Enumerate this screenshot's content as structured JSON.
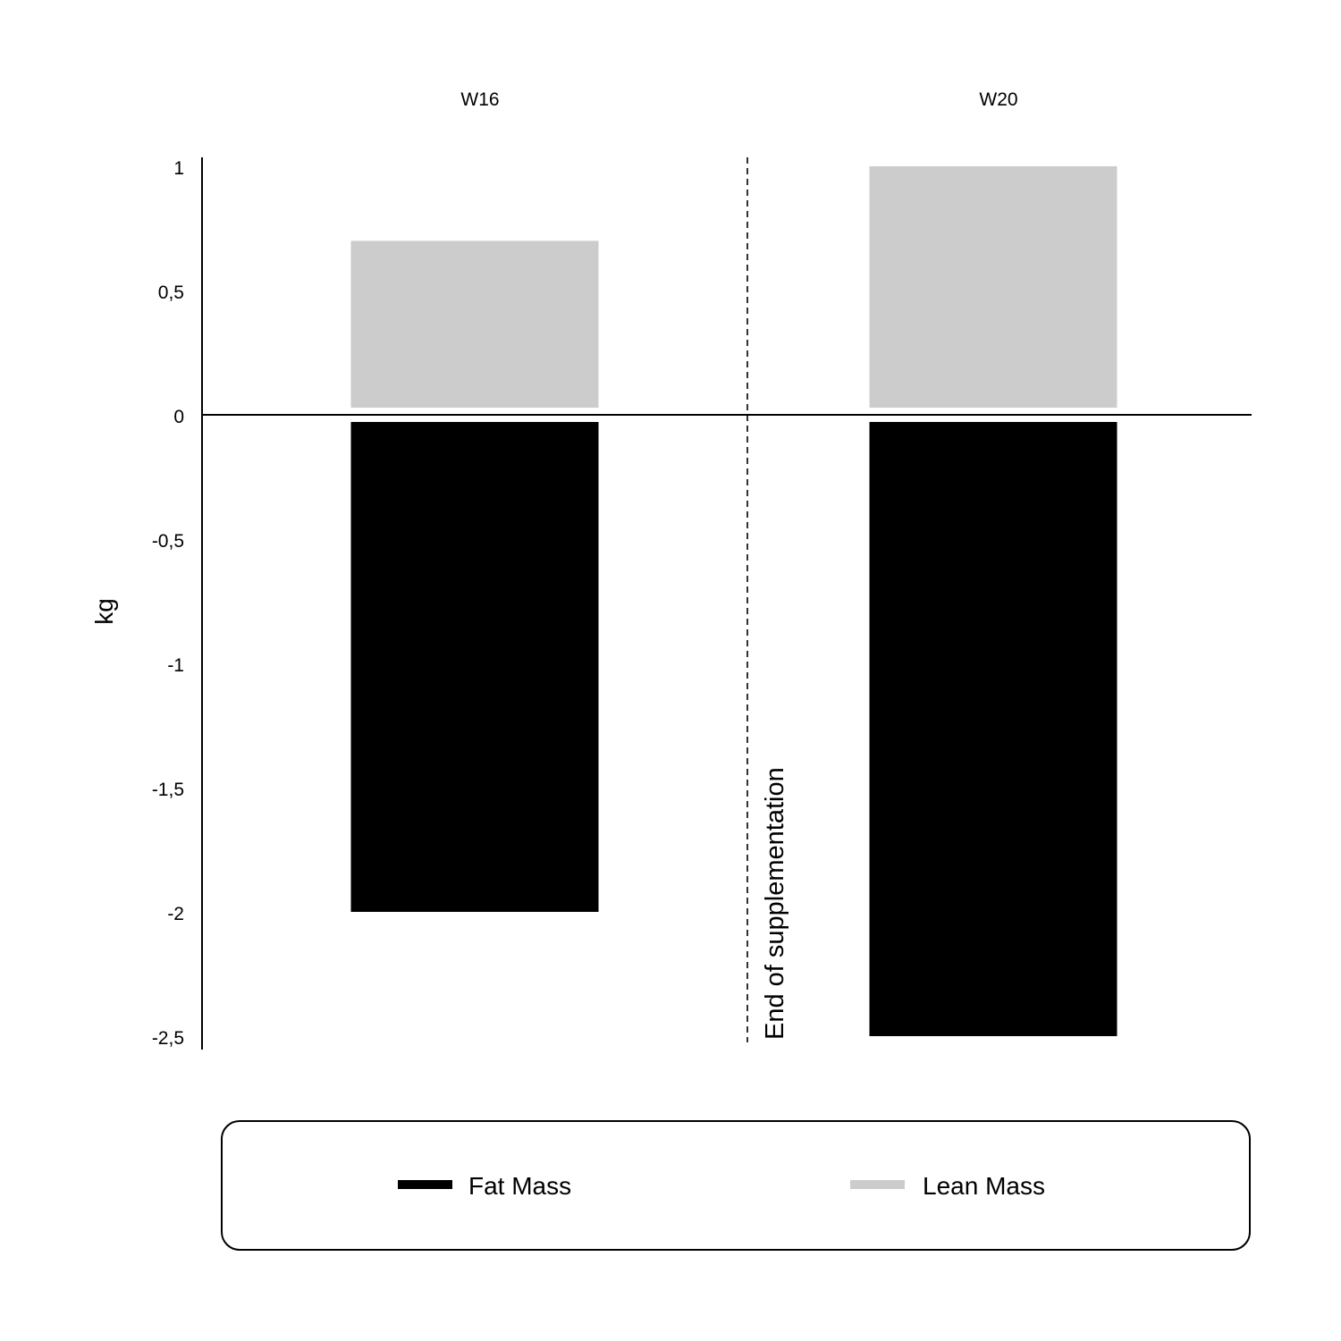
{
  "chart_data": {
    "type": "bar",
    "stacked": "diverging",
    "categories": [
      "W16",
      "W20"
    ],
    "series": [
      {
        "name": "Fat Mass",
        "values": [
          -2.0,
          -2.5
        ],
        "color": "#000000"
      },
      {
        "name": "Lean Mass",
        "values": [
          0.7,
          1.0
        ],
        "color": "#cccccc"
      }
    ],
    "ylabel": "kg",
    "xlabel": "",
    "ylim": [
      -2.5,
      1
    ],
    "yticks": [
      1,
      0.5,
      0,
      -0.5,
      -1,
      -1.5,
      -2,
      -2.5
    ],
    "ytick_labels": [
      "1",
      "0,5",
      "0",
      "-0,5",
      "-1",
      "-1,5",
      "-2",
      "-2,5"
    ],
    "category_position": "top",
    "annotation": {
      "text": "End of supplementation",
      "between": [
        "W16",
        "W20"
      ],
      "style": "dashed vertical line"
    },
    "grid": false,
    "legend": {
      "placement": "bottom",
      "entries": [
        "Fat Mass",
        "Lean Mass"
      ]
    }
  }
}
